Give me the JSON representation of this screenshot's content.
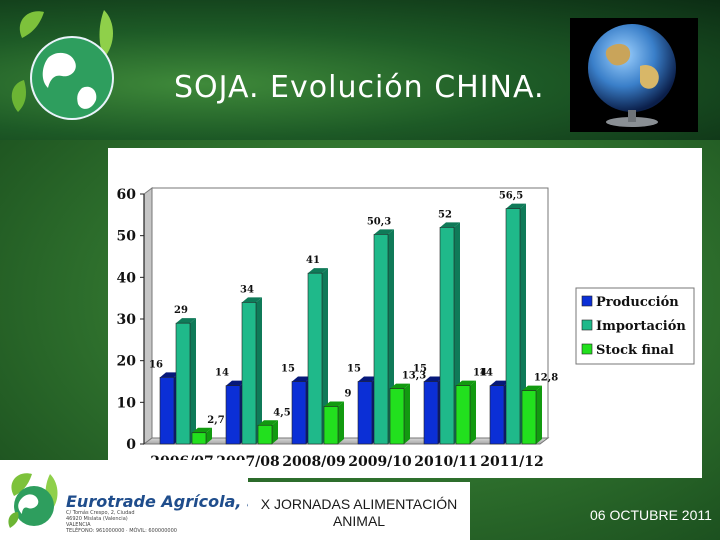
{
  "slide": {
    "title": "SOJA. Evolución CHINA.",
    "footer_center": "X JORNADAS ALIMENTACIÓN ANIMAL",
    "footer_date": "06 OCTUBRE 2011"
  },
  "brand": {
    "name": "Eurotrade Agrícola, S.L.",
    "lines": [
      "C/ Tomás Crespo, 2, Ciudad",
      "46920 Mislata (Valencia)",
      "VALENCIA",
      "TELÉFONO: 961000000 · MÓVIL: 600000000"
    ]
  },
  "colors": {
    "produccion": "#0b2fd6",
    "importacion": "#1fb98a",
    "stock": "#22e01e"
  },
  "chart_data": {
    "type": "bar",
    "categories": [
      "2006/07",
      "2007/08",
      "2008/09",
      "2009/10",
      "2010/11",
      "2011/12"
    ],
    "ylim": [
      0,
      60
    ],
    "yticks": [
      "0",
      "10",
      "20",
      "30",
      "40",
      "50",
      "60"
    ],
    "series": [
      {
        "name": "Producción",
        "values": [
          16,
          14,
          15,
          15,
          15,
          14
        ],
        "labels": [
          "16",
          "14",
          "15",
          "15",
          "15",
          "14"
        ]
      },
      {
        "name": "Importación",
        "values": [
          29,
          34,
          41,
          50.3,
          52,
          56.5
        ],
        "labels": [
          "29",
          "34",
          "41",
          "50,3",
          "52",
          "56,5"
        ]
      },
      {
        "name": "Stock final",
        "values": [
          2.7,
          4.5,
          9,
          13.3,
          14,
          12.8
        ],
        "labels": [
          "2,7",
          "4,5",
          "9",
          "13,3",
          "14",
          "12,8"
        ]
      }
    ],
    "legend_position": "right",
    "grid": false
  }
}
